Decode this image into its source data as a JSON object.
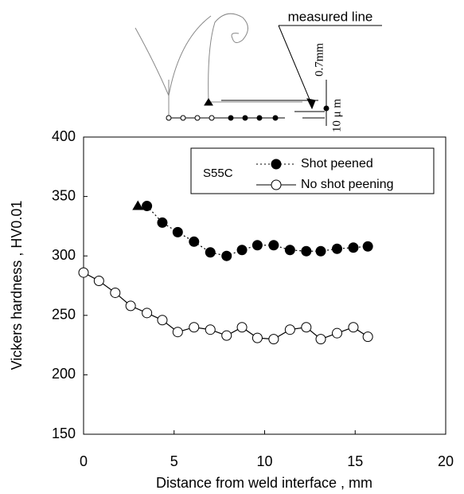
{
  "chart_data": {
    "type": "line",
    "xlabel": "Distance from weld interface , mm",
    "ylabel": "Vickers hardness , HV0.01",
    "material": "S55C",
    "annotations": {
      "measured_line": "measured line",
      "depth": "0.7mm",
      "width": "10 μ m"
    },
    "xlim": [
      0,
      20
    ],
    "xticks": [
      0,
      5,
      10,
      15,
      20
    ],
    "ylim": [
      150,
      400
    ],
    "yticks": [
      150,
      200,
      250,
      300,
      350,
      400
    ],
    "triangle_point": {
      "x": 3.0,
      "y": 342
    },
    "series": [
      {
        "name": "Shot peened",
        "color": "#000000",
        "marker": "filled",
        "dash": "dotted",
        "x": [
          3.5,
          4.35,
          5.2,
          6.1,
          7.0,
          7.9,
          8.75,
          9.6,
          10.5,
          11.4,
          12.3,
          13.1,
          14.0,
          14.9,
          15.7
        ],
        "values": [
          342,
          328,
          320,
          312,
          303,
          300,
          305,
          309,
          309,
          305,
          304,
          304,
          306,
          307,
          308
        ]
      },
      {
        "name": "No shot peening",
        "color": "#000000",
        "marker": "open",
        "dash": "solid",
        "x": [
          0,
          0.85,
          1.75,
          2.6,
          3.5,
          4.35,
          5.2,
          6.1,
          7.0,
          7.9,
          8.75,
          9.6,
          10.5,
          11.4,
          12.3,
          13.1,
          14.0,
          14.9,
          15.7
        ],
        "values": [
          286,
          279,
          269,
          258,
          252,
          246,
          236,
          240,
          238,
          233,
          240,
          231,
          230,
          238,
          240,
          230,
          235,
          240,
          232
        ]
      }
    ]
  }
}
